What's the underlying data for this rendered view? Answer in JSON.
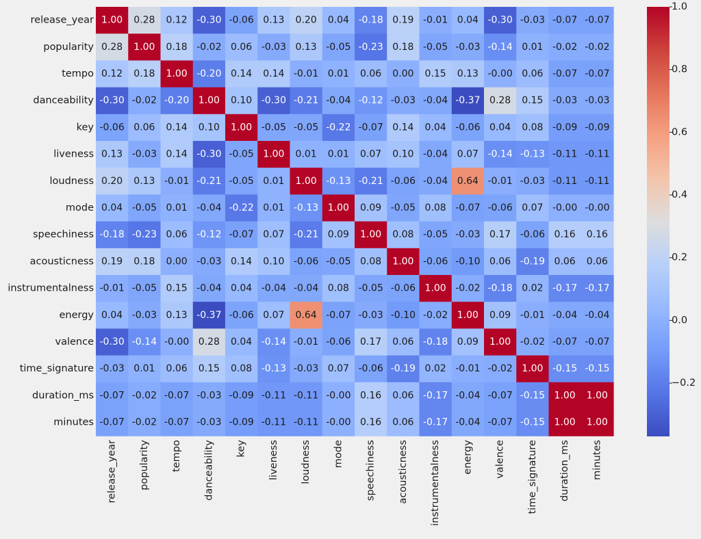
{
  "chart_data": {
    "type": "heatmap",
    "title": "",
    "xlabel": "",
    "ylabel": "",
    "colormap": "coolwarm",
    "annotate": true,
    "value_format": "0.00",
    "vmin": -0.37,
    "vmax": 1.0,
    "labels": [
      "release_year",
      "popularity",
      "tempo",
      "danceability",
      "key",
      "liveness",
      "loudness",
      "mode",
      "speechiness",
      "acousticness",
      "instrumentalness",
      "energy",
      "valence",
      "time_signature",
      "duration_ms",
      "minutes"
    ],
    "matrix": [
      [
        1.0,
        0.28,
        0.12,
        -0.3,
        -0.06,
        0.13,
        0.2,
        0.04,
        -0.18,
        0.19,
        -0.01,
        0.04,
        -0.3,
        -0.03,
        -0.07,
        -0.07
      ],
      [
        0.28,
        1.0,
        0.18,
        -0.02,
        0.06,
        -0.03,
        0.13,
        -0.05,
        -0.23,
        0.18,
        -0.05,
        -0.03,
        -0.14,
        0.01,
        -0.02,
        -0.02
      ],
      [
        0.12,
        0.18,
        1.0,
        -0.2,
        0.14,
        0.14,
        -0.01,
        0.01,
        0.06,
        0.0,
        0.15,
        0.13,
        -0.0,
        0.06,
        -0.07,
        -0.07
      ],
      [
        -0.3,
        -0.02,
        -0.2,
        1.0,
        0.1,
        -0.3,
        -0.21,
        -0.04,
        -0.12,
        -0.03,
        -0.04,
        -0.37,
        0.28,
        0.15,
        -0.03,
        -0.03
      ],
      [
        -0.06,
        0.06,
        0.14,
        0.1,
        1.0,
        -0.05,
        -0.05,
        -0.22,
        -0.07,
        0.14,
        0.04,
        -0.06,
        0.04,
        0.08,
        -0.09,
        -0.09
      ],
      [
        0.13,
        -0.03,
        0.14,
        -0.3,
        -0.05,
        1.0,
        0.01,
        0.01,
        0.07,
        0.1,
        -0.04,
        0.07,
        -0.14,
        -0.13,
        -0.11,
        -0.11
      ],
      [
        0.2,
        0.13,
        -0.01,
        -0.21,
        -0.05,
        0.01,
        1.0,
        -0.13,
        -0.21,
        -0.06,
        -0.04,
        0.64,
        -0.01,
        -0.03,
        -0.11,
        -0.11
      ],
      [
        0.04,
        -0.05,
        0.01,
        -0.04,
        -0.22,
        0.01,
        -0.13,
        1.0,
        0.09,
        -0.05,
        0.08,
        -0.07,
        -0.06,
        0.07,
        -0.0,
        -0.0
      ],
      [
        -0.18,
        -0.23,
        0.06,
        -0.12,
        -0.07,
        0.07,
        -0.21,
        0.09,
        1.0,
        0.08,
        -0.05,
        -0.03,
        0.17,
        -0.06,
        0.16,
        0.16
      ],
      [
        0.19,
        0.18,
        0.0,
        -0.03,
        0.14,
        0.1,
        -0.06,
        -0.05,
        0.08,
        1.0,
        -0.06,
        -0.1,
        0.06,
        -0.19,
        0.06,
        0.06
      ],
      [
        -0.01,
        -0.05,
        0.15,
        -0.04,
        0.04,
        -0.04,
        -0.04,
        0.08,
        -0.05,
        -0.06,
        1.0,
        -0.02,
        -0.18,
        0.02,
        -0.17,
        -0.17
      ],
      [
        0.04,
        -0.03,
        0.13,
        -0.37,
        -0.06,
        0.07,
        0.64,
        -0.07,
        -0.03,
        -0.1,
        -0.02,
        1.0,
        0.09,
        -0.01,
        -0.04,
        -0.04
      ],
      [
        -0.3,
        -0.14,
        -0.0,
        0.28,
        0.04,
        -0.14,
        -0.01,
        -0.06,
        0.17,
        0.06,
        -0.18,
        0.09,
        1.0,
        -0.02,
        -0.07,
        -0.07
      ],
      [
        -0.03,
        0.01,
        0.06,
        0.15,
        0.08,
        -0.13,
        -0.03,
        0.07,
        -0.06,
        -0.19,
        0.02,
        -0.01,
        -0.02,
        1.0,
        -0.15,
        -0.15
      ],
      [
        -0.07,
        -0.02,
        -0.07,
        -0.03,
        -0.09,
        -0.11,
        -0.11,
        -0.0,
        0.16,
        0.06,
        -0.17,
        -0.04,
        -0.07,
        -0.15,
        1.0,
        1.0
      ],
      [
        -0.07,
        -0.02,
        -0.07,
        -0.03,
        -0.09,
        -0.11,
        -0.11,
        -0.0,
        0.16,
        0.06,
        -0.17,
        -0.04,
        -0.07,
        -0.15,
        1.0,
        1.0
      ]
    ],
    "colorbar": {
      "ticks": [
        1.0,
        0.8,
        0.6,
        0.4,
        0.2,
        0.0,
        -0.2
      ],
      "tick_labels": [
        "1.0",
        "0.8",
        "0.6",
        "0.4",
        "0.2",
        "0.0",
        "−0.2"
      ]
    },
    "grid": false,
    "colors": {
      "background": "#f0f0f0",
      "text_dark": "#1a1a1a",
      "text_light": "#ffffff"
    }
  }
}
